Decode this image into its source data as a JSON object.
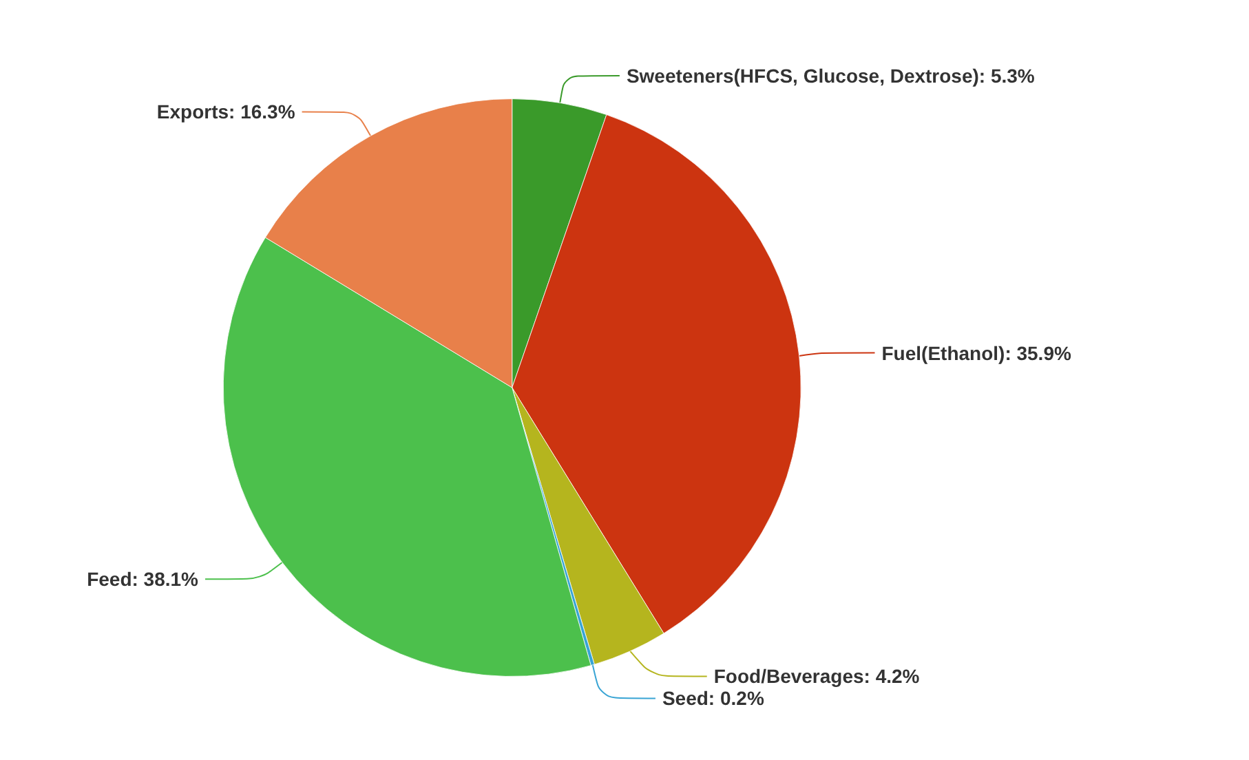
{
  "chart_data": {
    "type": "pie",
    "categories": [
      "Sweeteners(HFCS, Glucose, Dextrose)",
      "Fuel(Ethanol)",
      "Food/Beverages",
      "Seed",
      "Feed",
      "Exports"
    ],
    "values": [
      5.3,
      35.9,
      4.2,
      0.2,
      38.1,
      16.3
    ],
    "value_labels": [
      "5.3%",
      "35.9%",
      "4.2%",
      "0.2%",
      "38.1%",
      "16.3%"
    ],
    "colors": [
      "#3a9a2a",
      "#cc3410",
      "#b5b51e",
      "#38a4d4",
      "#4cc04c",
      "#e8804a"
    ],
    "legend": false
  }
}
